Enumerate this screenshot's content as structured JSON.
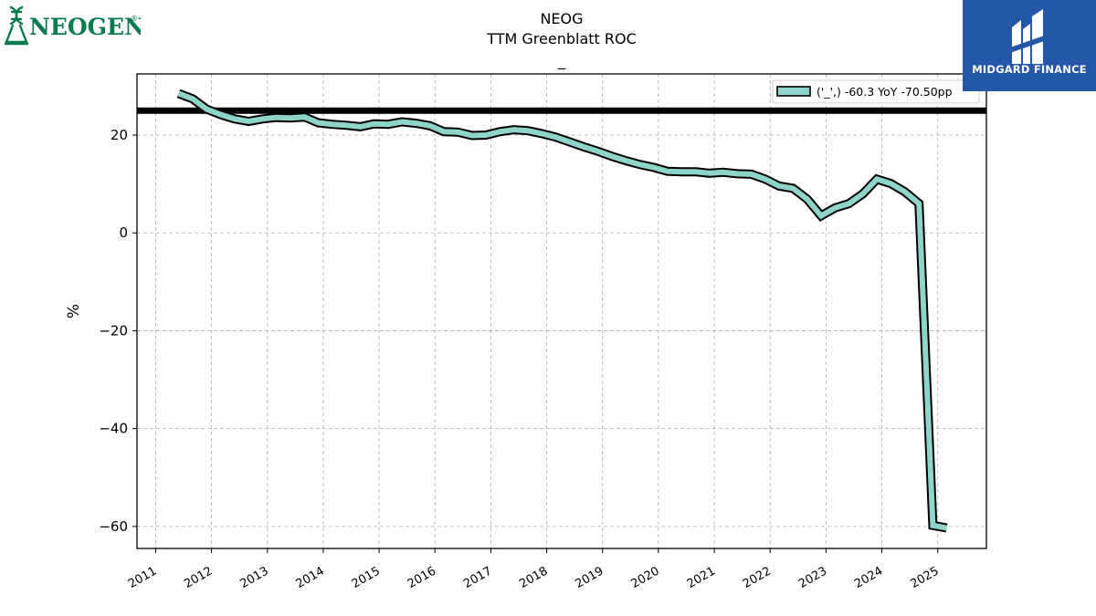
{
  "header": {
    "ticker": "NEOG",
    "metric": "TTM Greenblatt ROC",
    "subtitle": "_"
  },
  "logos": {
    "left": {
      "name": "NEOGEN",
      "mark": "®",
      "color": "#0a7a4f"
    },
    "right": {
      "name": "MIDGARD FINANCE",
      "background": "#2557a7"
    }
  },
  "chart_data": {
    "type": "line",
    "title": "NEOG\nTTM Greenblatt ROC\n_",
    "xlabel": "",
    "ylabel": "%",
    "xlim": [
      "2010-09-01",
      "2025-11-15"
    ],
    "ylim": [
      -64.5,
      32.5
    ],
    "x_ticks": [
      "2011",
      "2012",
      "2013",
      "2014",
      "2015",
      "2016",
      "2017",
      "2018",
      "2019",
      "2020",
      "2021",
      "2022",
      "2023",
      "2024",
      "2025"
    ],
    "y_ticks": [
      20,
      0,
      -20,
      -40,
      -60
    ],
    "y_tick_labels": [
      "20",
      "0",
      "−20",
      "−40",
      "−60"
    ],
    "grid": true,
    "legend": {
      "position": "top-right",
      "label": "('_',) -60.3 YoY -70.50pp"
    },
    "reference_line": {
      "y": 25.0,
      "color": "#000000"
    },
    "series": [
      {
        "name": "('_',) -60.3 YoY -70.50pp",
        "color": "#8ed4c8",
        "edge_color": "#000000",
        "x": [
          "2011-05-31",
          "2011-08-31",
          "2011-11-30",
          "2012-02-29",
          "2012-05-31",
          "2012-08-31",
          "2012-11-30",
          "2013-02-28",
          "2013-05-31",
          "2013-08-31",
          "2013-11-30",
          "2014-02-28",
          "2014-05-31",
          "2014-08-31",
          "2014-11-30",
          "2015-02-28",
          "2015-05-31",
          "2015-08-31",
          "2015-11-30",
          "2016-02-29",
          "2016-05-31",
          "2016-08-31",
          "2016-11-30",
          "2017-02-28",
          "2017-05-31",
          "2017-08-31",
          "2017-11-30",
          "2018-02-28",
          "2018-05-31",
          "2018-08-31",
          "2018-11-30",
          "2019-02-28",
          "2019-05-31",
          "2019-08-31",
          "2019-11-30",
          "2020-02-29",
          "2020-05-31",
          "2020-08-31",
          "2020-11-30",
          "2021-02-28",
          "2021-05-31",
          "2021-08-31",
          "2021-11-30",
          "2022-02-28",
          "2022-05-31",
          "2022-08-31",
          "2022-11-30",
          "2023-02-28",
          "2023-05-31",
          "2023-08-31",
          "2023-11-30",
          "2024-02-29",
          "2024-05-31",
          "2024-08-31",
          "2024-11-30",
          "2025-02-28"
        ],
        "values": [
          28.5,
          27.4,
          25.3,
          24.2,
          23.3,
          22.8,
          23.3,
          23.6,
          23.5,
          23.7,
          22.5,
          22.2,
          22.0,
          21.7,
          22.3,
          22.2,
          22.7,
          22.4,
          21.9,
          20.7,
          20.6,
          19.9,
          20.0,
          20.7,
          21.1,
          20.9,
          20.3,
          19.6,
          18.6,
          17.6,
          16.7,
          15.7,
          14.8,
          14.0,
          13.4,
          12.6,
          12.5,
          12.5,
          12.2,
          12.4,
          12.1,
          12.0,
          11.0,
          9.6,
          9.1,
          6.9,
          3.5,
          5.1,
          6.0,
          8.0,
          11.0,
          10.1,
          8.4,
          6.0,
          -59.8,
          -60.3
        ]
      }
    ]
  }
}
